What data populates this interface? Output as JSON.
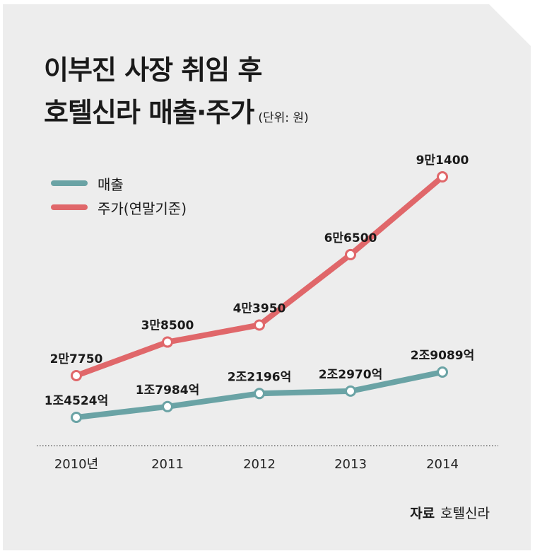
{
  "title": {
    "line1": "이부진 사장 취임 후",
    "line2": "호텔신라 매출·주가",
    "unit": "(단위: 원)"
  },
  "legend": [
    {
      "label": "매출",
      "color": "#6aa3a5"
    },
    {
      "label": "주가(연말기준)",
      "color": "#e0676a"
    }
  ],
  "source": {
    "key": "자료",
    "value": "호텔신라"
  },
  "chart_data": {
    "type": "line",
    "categories": [
      "2010년",
      "2011",
      "2012",
      "2013",
      "2014"
    ],
    "series": [
      {
        "name": "주가(연말기준)",
        "color": "#e0676a",
        "values": [
          27750,
          38500,
          43950,
          66500,
          91400
        ],
        "labels": [
          "2만7750",
          "3만8500",
          "4만3950",
          "6만6500",
          "9만1400"
        ]
      },
      {
        "name": "매출",
        "color": "#6aa3a5",
        "values": [
          14524,
          17984,
          22196,
          22970,
          29089
        ],
        "labels": [
          "1조4524억",
          "1조7984억",
          "2조2196억",
          "2조2970억",
          "2조9089억"
        ]
      }
    ],
    "grid": false
  }
}
